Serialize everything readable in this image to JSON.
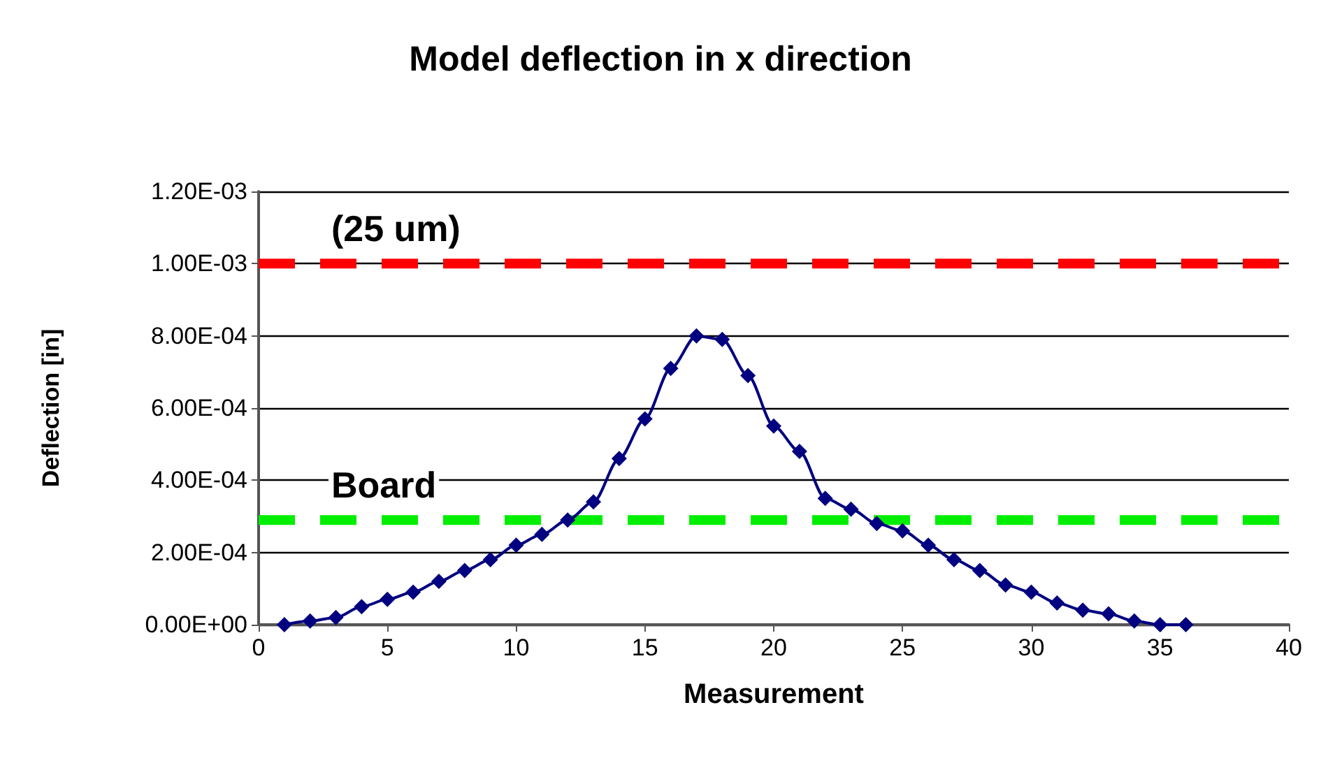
{
  "chart_data": {
    "type": "line",
    "title": "Model deflection in x direction",
    "xlabel": "Measurement",
    "ylabel": "Deflection [in]",
    "x": [
      1,
      2,
      3,
      4,
      5,
      6,
      7,
      8,
      9,
      10,
      11,
      12,
      13,
      14,
      15,
      16,
      17,
      18,
      19,
      20,
      21,
      22,
      23,
      24,
      25,
      26,
      27,
      28,
      29,
      30,
      31,
      32,
      33,
      34,
      35,
      36
    ],
    "series": [
      {
        "color": "#000080",
        "values": [
          0,
          1e-05,
          2e-05,
          5e-05,
          7e-05,
          9e-05,
          0.00012,
          0.00015,
          0.00018,
          0.00022,
          0.00025,
          0.00029,
          0.00034,
          0.00046,
          0.00057,
          0.00071,
          0.0008,
          0.00079,
          0.00069,
          0.00055,
          0.00048,
          0.00035,
          0.00032,
          0.00028,
          0.00026,
          0.00022,
          0.00018,
          0.00015,
          0.00011,
          9e-05,
          6e-05,
          4e-05,
          3e-05,
          1e-05,
          0,
          0
        ]
      }
    ],
    "xlim": [
      0,
      40
    ],
    "xticks": [
      0,
      5,
      10,
      15,
      20,
      25,
      30,
      35,
      40
    ],
    "ylim": [
      0,
      0.0012
    ],
    "yticks": [
      {
        "value": 0,
        "label": "0.00E+00"
      },
      {
        "value": 0.0002,
        "label": "2.00E-04"
      },
      {
        "value": 0.0004,
        "label": "4.00E-04"
      },
      {
        "value": 0.0006,
        "label": "6.00E-04"
      },
      {
        "value": 0.0008,
        "label": "8.00E-04"
      },
      {
        "value": 0.001,
        "label": "1.00E-03"
      },
      {
        "value": 0.0012,
        "label": "1.20E-03"
      }
    ],
    "ref_lines": [
      {
        "axis": "y",
        "value": 0.001,
        "label": "(25 um)",
        "color": "#ff0000",
        "line_style": "dashed"
      },
      {
        "axis": "y",
        "value": 0.00029,
        "label": "Board",
        "color": "#00ee00",
        "line_style": "dashed"
      }
    ],
    "grid": "y",
    "marker": "diamond",
    "line_style": "solid"
  }
}
